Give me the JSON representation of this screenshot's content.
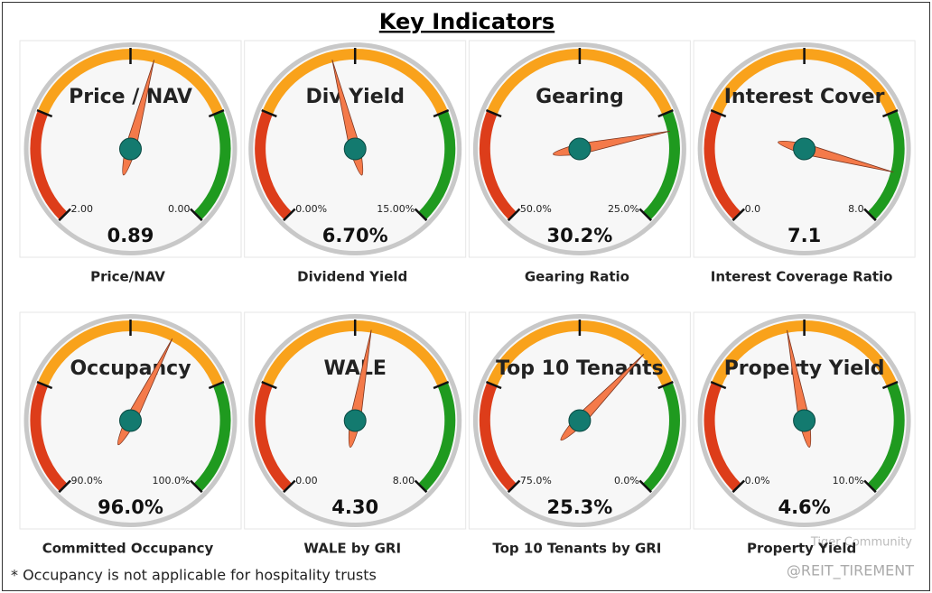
{
  "page": {
    "title": "Key Indicators",
    "footnote": "* Occupancy is not applicable for hospitality trusts",
    "watermark": "Tiger Community",
    "handle": "@REIT_TIREMENT"
  },
  "chart_data": [
    {
      "type": "gauge",
      "title": "Price / NAV",
      "caption": "Price/NAV",
      "ticks": [
        {
          "value": 2,
          "label": "2.00"
        },
        {
          "value": 0,
          "label": "0.00"
        }
      ],
      "values": [
        0.89
      ]
    },
    {
      "type": "gauge",
      "title": "Div Yield",
      "caption": "Dividend Yield",
      "ticks": [
        {
          "value": 0,
          "label": "0.00%"
        },
        {
          "value": 15,
          "label": "15.00%"
        }
      ],
      "values": [
        6.7
      ],
      "value_labels": [
        "6.70%"
      ]
    },
    {
      "type": "gauge",
      "title": "Gearing",
      "caption": "Gearing Ratio",
      "ticks": [
        {
          "value": 50,
          "label": "50.0%"
        },
        {
          "value": 25,
          "label": "25.0%"
        }
      ],
      "values": [
        30.2
      ],
      "value_labels": [
        "30.2%"
      ]
    },
    {
      "type": "gauge",
      "title": "Interest Cover",
      "caption": "Interest Coverage Ratio",
      "ticks": [
        {
          "value": 0,
          "label": "0.0"
        },
        {
          "value": 8,
          "label": "8.0"
        }
      ],
      "values": [
        7.1
      ]
    },
    {
      "type": "gauge",
      "title": "Occupancy",
      "caption": "Committed Occupancy",
      "ticks": [
        {
          "value": 90,
          "label": "90.0%"
        },
        {
          "value": 100,
          "label": "100.0%"
        }
      ],
      "values": [
        96
      ],
      "value_labels": [
        "96.0%"
      ]
    },
    {
      "type": "gauge",
      "title": "WALE",
      "caption": "WALE by GRI",
      "ticks": [
        {
          "value": 0,
          "label": "0.00"
        },
        {
          "value": 8,
          "label": "8.00"
        }
      ],
      "values": [
        4.3
      ],
      "value_labels": [
        "4.30"
      ]
    },
    {
      "type": "gauge",
      "title": "Top 10 Tenants",
      "caption": "Top 10 Tenants by GRI",
      "ticks": [
        {
          "value": 75,
          "label": "75.0%"
        },
        {
          "value": 0,
          "label": "0.0%"
        }
      ],
      "values": [
        25.3
      ],
      "value_labels": [
        "25.3%"
      ]
    },
    {
      "type": "gauge",
      "title": "Property Yield",
      "caption": "Property Yield",
      "ticks": [
        {
          "value": 0,
          "label": "0.0%"
        },
        {
          "value": 10,
          "label": "10.0%"
        }
      ],
      "values": [
        4.6
      ],
      "value_labels": [
        "4.6%"
      ]
    }
  ]
}
